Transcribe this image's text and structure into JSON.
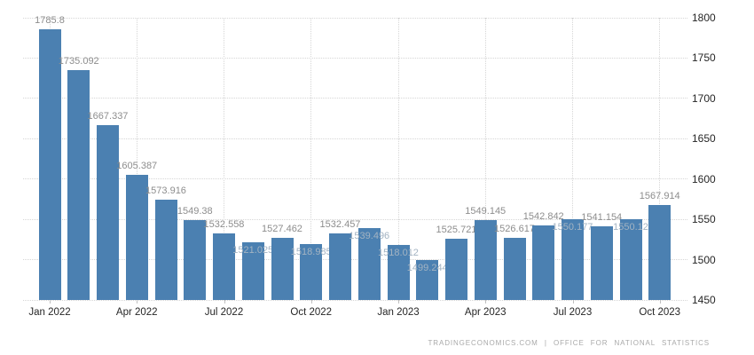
{
  "chart_data": {
    "type": "bar",
    "title": "",
    "xlabel": "",
    "ylabel": "",
    "categories": [
      "Jan 2022",
      "Feb 2022",
      "Mar 2022",
      "Apr 2022",
      "May 2022",
      "Jun 2022",
      "Jul 2022",
      "Aug 2022",
      "Sep 2022",
      "Oct 2022",
      "Nov 2022",
      "Dec 2022",
      "Jan 2023",
      "Feb 2023",
      "Mar 2023",
      "Apr 2023",
      "May 2023",
      "Jun 2023",
      "Jul 2023",
      "Aug 2023",
      "Sep 2023",
      "Oct 2023"
    ],
    "values": [
      1785.8,
      1735.092,
      1667.337,
      1605.387,
      1573.916,
      1549.38,
      1532.558,
      1521.025,
      1527.462,
      1518.985,
      1532.457,
      1539.496,
      1518.012,
      1499.244,
      1525.721,
      1549.145,
      1526.617,
      1542.842,
      1550.177,
      1541.154,
      1550.12,
      1567.914
    ],
    "data_labels_shown": true,
    "data_label_on_bar_indices": [
      7,
      9,
      11,
      12,
      13,
      18,
      20
    ],
    "ylim": [
      1450,
      1800
    ],
    "y_ticks": [
      "1450",
      "1500",
      "1550",
      "1600",
      "1650",
      "1700",
      "1750",
      "1800"
    ],
    "y_axis_position": "right",
    "x_ticks": [
      {
        "index": 0,
        "label": "Jan 2022"
      },
      {
        "index": 3,
        "label": "Apr 2022"
      },
      {
        "index": 6,
        "label": "Jul 2022"
      },
      {
        "index": 9,
        "label": "Oct 2022"
      },
      {
        "index": 12,
        "label": "Jan 2023"
      },
      {
        "index": 15,
        "label": "Apr 2023"
      },
      {
        "index": 18,
        "label": "Jul 2023"
      },
      {
        "index": 21,
        "label": "Oct 2023"
      }
    ],
    "grid": true,
    "legend": "none",
    "colors": {
      "bar": "#4b80b1",
      "grid": "#d6d6d6",
      "tick": "#c0c0c0",
      "data_label": "#8d8d8d",
      "data_label_on_bar": "#a3b3c2",
      "axis_label": "#262626",
      "attribution": "#a9a9a9"
    }
  },
  "footer": {
    "attribution": "TRADINGECONOMICS.COM | OFFICE FOR NATIONAL STATISTICS"
  }
}
